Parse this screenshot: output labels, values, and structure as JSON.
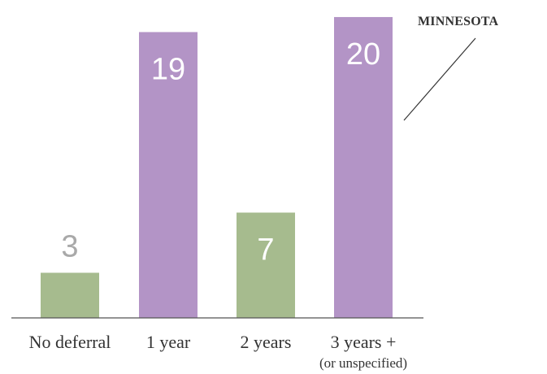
{
  "chart_data": {
    "type": "bar",
    "categories": [
      "No deferral",
      "1 year",
      "2 years",
      "3 years +"
    ],
    "category_sublabels": [
      "",
      "",
      "",
      "(or unspecified)"
    ],
    "values": [
      3,
      19,
      7,
      20
    ],
    "bar_colors": [
      "#a6bb8e",
      "#b394c6",
      "#a6bb8e",
      "#b394c6"
    ],
    "label_colors": [
      "#a9a9a9",
      "#ffffff",
      "#ffffff",
      "#ffffff"
    ],
    "ylim": [
      0,
      20.7
    ],
    "grid": false,
    "callout": "MINNESOTA"
  }
}
